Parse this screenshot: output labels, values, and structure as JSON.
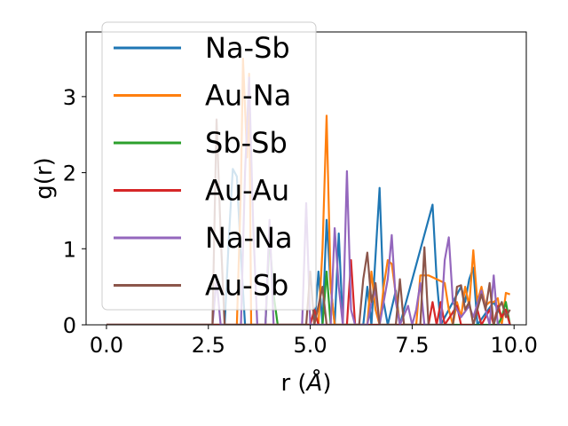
{
  "chart_data": {
    "type": "line",
    "xlabel": "r (",
    "xlabel_unit": "Å",
    "xlabel_close": ")",
    "ylabel": "g(r)",
    "xlim": [
      -0.5,
      10.3
    ],
    "ylim": [
      0,
      3.85
    ],
    "xticks": [
      0.0,
      2.5,
      5.0,
      7.5,
      10.0
    ],
    "xtick_labels": [
      "0.0",
      "2.5",
      "5.0",
      "7.5",
      "10.0"
    ],
    "yticks": [
      0,
      1,
      2,
      3
    ],
    "ytick_labels": [
      "0",
      "1",
      "2",
      "3"
    ],
    "grid": false,
    "legend_position": "upper-left",
    "series": [
      {
        "name": "Na-Sb",
        "color": "#1f77b4",
        "points": [
          [
            0.0,
            0
          ],
          [
            2.9,
            0
          ],
          [
            3.0,
            1.1
          ],
          [
            3.1,
            2.05
          ],
          [
            3.2,
            1.95
          ],
          [
            3.3,
            0.9
          ],
          [
            3.4,
            0
          ],
          [
            5.1,
            0
          ],
          [
            5.2,
            0.7
          ],
          [
            5.3,
            0
          ],
          [
            5.4,
            1.38
          ],
          [
            5.5,
            0.5
          ],
          [
            5.6,
            0
          ],
          [
            5.7,
            1.2
          ],
          [
            5.8,
            0
          ],
          [
            6.3,
            0
          ],
          [
            6.4,
            0.5
          ],
          [
            6.5,
            0
          ],
          [
            6.7,
            1.8
          ],
          [
            6.8,
            0.3
          ],
          [
            6.9,
            0
          ],
          [
            7.1,
            0.45
          ],
          [
            7.2,
            0
          ],
          [
            8.0,
            1.58
          ],
          [
            8.1,
            0.6
          ],
          [
            8.2,
            0
          ],
          [
            8.7,
            0.5
          ],
          [
            8.8,
            0.3
          ],
          [
            8.9,
            0.6
          ],
          [
            9.0,
            0.75
          ],
          [
            9.1,
            0
          ],
          [
            9.5,
            0.3
          ],
          [
            9.6,
            0.2
          ],
          [
            9.7,
            0.1
          ],
          [
            9.8,
            0.2
          ],
          [
            9.9,
            0
          ]
        ]
      },
      {
        "name": "Au-Na",
        "color": "#ff7f0e",
        "points": [
          [
            0.0,
            0
          ],
          [
            3.2,
            0
          ],
          [
            3.3,
            1.8
          ],
          [
            3.35,
            3.5
          ],
          [
            3.45,
            2.2
          ],
          [
            3.5,
            3.3
          ],
          [
            3.55,
            0
          ],
          [
            5.2,
            0
          ],
          [
            5.3,
            1.0
          ],
          [
            5.4,
            2.75
          ],
          [
            5.5,
            0.5
          ],
          [
            5.6,
            0
          ],
          [
            6.4,
            0
          ],
          [
            6.5,
            0.7
          ],
          [
            6.6,
            0.2
          ],
          [
            6.7,
            0
          ],
          [
            6.8,
            0.5
          ],
          [
            6.9,
            0.85
          ],
          [
            7.0,
            0.8
          ],
          [
            7.1,
            0.4
          ],
          [
            7.2,
            0
          ],
          [
            7.6,
            0
          ],
          [
            7.7,
            0.65
          ],
          [
            7.9,
            0.65
          ],
          [
            8.3,
            0.55
          ],
          [
            8.4,
            0.2
          ],
          [
            8.5,
            0
          ],
          [
            8.6,
            0.3
          ],
          [
            8.7,
            0.1
          ],
          [
            8.8,
            0.5
          ],
          [
            8.9,
            0.25
          ],
          [
            9.0,
            0.98
          ],
          [
            9.1,
            0.3
          ],
          [
            9.2,
            0.5
          ],
          [
            9.3,
            0.25
          ],
          [
            9.4,
            0.3
          ],
          [
            9.5,
            0.3
          ],
          [
            9.6,
            0.35
          ],
          [
            9.7,
            0
          ],
          [
            9.8,
            0.42
          ],
          [
            9.9,
            0.4
          ]
        ]
      },
      {
        "name": "Sb-Sb",
        "color": "#2ca02c",
        "points": [
          [
            0.0,
            0
          ],
          [
            3.9,
            0
          ],
          [
            4.0,
            1.15
          ],
          [
            4.1,
            0.4
          ],
          [
            4.2,
            0
          ],
          [
            5.3,
            0
          ],
          [
            5.4,
            0.7
          ],
          [
            5.5,
            0
          ],
          [
            9.6,
            0
          ],
          [
            9.7,
            0.1
          ],
          [
            9.8,
            0.3
          ],
          [
            9.9,
            0
          ]
        ]
      },
      {
        "name": "Au-Au",
        "color": "#d62728",
        "points": [
          [
            0.0,
            0
          ],
          [
            5.0,
            0
          ],
          [
            5.1,
            0.2
          ],
          [
            5.2,
            0
          ],
          [
            5.9,
            0
          ],
          [
            6.0,
            0.85
          ],
          [
            6.1,
            0
          ],
          [
            7.9,
            0
          ],
          [
            8.0,
            0.3
          ],
          [
            8.1,
            0
          ],
          [
            8.2,
            0.3
          ],
          [
            8.3,
            0
          ],
          [
            8.6,
            0.25
          ],
          [
            8.7,
            0
          ],
          [
            9.0,
            0
          ],
          [
            9.1,
            0.2
          ],
          [
            9.2,
            0
          ],
          [
            9.4,
            0.2
          ],
          [
            9.5,
            0
          ],
          [
            9.6,
            0.25
          ],
          [
            9.7,
            0.1
          ],
          [
            9.8,
            0.2
          ],
          [
            9.9,
            0
          ]
        ]
      },
      {
        "name": "Na-Na",
        "color": "#9467bd",
        "points": [
          [
            0.0,
            0
          ],
          [
            2.6,
            0
          ],
          [
            2.7,
            0.6
          ],
          [
            2.8,
            0
          ],
          [
            3.3,
            0
          ],
          [
            3.4,
            2.0
          ],
          [
            3.5,
            3.25
          ],
          [
            3.6,
            1.3
          ],
          [
            3.7,
            0
          ],
          [
            3.9,
            0
          ],
          [
            4.0,
            1.38
          ],
          [
            4.1,
            0
          ],
          [
            4.8,
            0
          ],
          [
            4.9,
            1.6
          ],
          [
            5.0,
            0
          ],
          [
            5.5,
            0
          ],
          [
            5.6,
            1.27
          ],
          [
            5.7,
            0.5
          ],
          [
            5.8,
            0
          ],
          [
            5.9,
            2.02
          ],
          [
            6.0,
            0.2
          ],
          [
            6.1,
            0
          ],
          [
            6.4,
            0
          ],
          [
            6.5,
            0.3
          ],
          [
            6.6,
            0.45
          ],
          [
            6.7,
            0
          ],
          [
            6.9,
            0.6
          ],
          [
            7.0,
            1.18
          ],
          [
            7.1,
            0.3
          ],
          [
            7.2,
            0
          ],
          [
            7.4,
            0.25
          ],
          [
            7.5,
            0
          ],
          [
            7.6,
            0.2
          ],
          [
            7.7,
            0.55
          ],
          [
            7.8,
            0
          ],
          [
            8.2,
            0
          ],
          [
            8.3,
            0.85
          ],
          [
            8.4,
            1.15
          ],
          [
            8.5,
            0.3
          ],
          [
            8.6,
            0.2
          ],
          [
            8.7,
            0.1
          ],
          [
            8.9,
            0.25
          ],
          [
            9.0,
            0.1
          ],
          [
            9.2,
            0.45
          ],
          [
            9.3,
            0.2
          ],
          [
            9.4,
            0
          ],
          [
            9.5,
            0.65
          ],
          [
            9.6,
            0
          ],
          [
            9.9,
            0
          ]
        ]
      },
      {
        "name": "Au-Sb",
        "color": "#8c564b",
        "points": [
          [
            0.0,
            0
          ],
          [
            2.6,
            0
          ],
          [
            2.7,
            2.7
          ],
          [
            2.8,
            1.2
          ],
          [
            2.9,
            0
          ],
          [
            4.9,
            0
          ],
          [
            5.0,
            0.7
          ],
          [
            5.1,
            0
          ],
          [
            5.3,
            0.5
          ],
          [
            5.4,
            0
          ],
          [
            6.2,
            0
          ],
          [
            6.3,
            0.6
          ],
          [
            6.4,
            0.95
          ],
          [
            6.5,
            0.3
          ],
          [
            6.6,
            0.55
          ],
          [
            6.7,
            0
          ],
          [
            7.1,
            0
          ],
          [
            7.2,
            0.6
          ],
          [
            7.3,
            0
          ],
          [
            7.7,
            0
          ],
          [
            7.8,
            1.02
          ],
          [
            7.9,
            0
          ],
          [
            8.5,
            0
          ],
          [
            8.6,
            0.5
          ],
          [
            8.7,
            0.52
          ],
          [
            8.8,
            0.2
          ],
          [
            8.9,
            0.3
          ],
          [
            9.0,
            0
          ],
          [
            9.2,
            0.4
          ],
          [
            9.3,
            0.2
          ],
          [
            9.4,
            0.55
          ],
          [
            9.5,
            0
          ],
          [
            9.6,
            0.2
          ],
          [
            9.7,
            0.3
          ],
          [
            9.8,
            0.1
          ],
          [
            9.9,
            0.2
          ]
        ]
      }
    ]
  }
}
